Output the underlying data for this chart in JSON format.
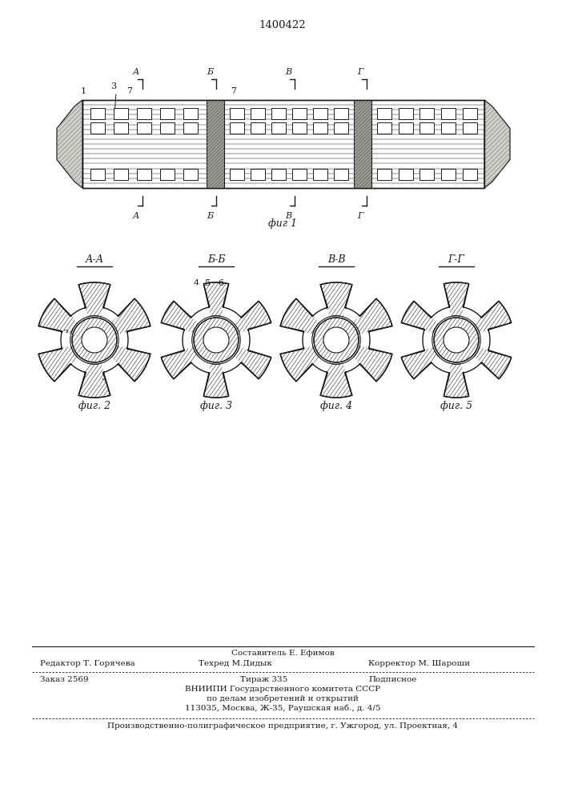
{
  "patent_number": "1400422",
  "fig1_label": "фиг 1",
  "fig2_label": "фиг. 2",
  "fig3_label": "фиг. 3",
  "fig4_label": "фиг. 4",
  "fig5_label": "фиг. 5",
  "cross_section_labels": [
    "А-А",
    "Б-Б",
    "В-В",
    "Г-Г"
  ],
  "section_top": [
    "А",
    "Б",
    "В",
    "Г"
  ],
  "section_bot": [
    "А",
    "Б",
    "В",
    "Г"
  ],
  "footer_line1_mid": "Составитель Е. Ефимов",
  "footer_line1_left": "Редактор Т. Горячева",
  "footer_line1b": "Техред М.Дидык",
  "footer_line1_right": "Корректор М. Шароши",
  "footer_line2_left": "Заказ 2569",
  "footer_line2_mid": "Тираж 335",
  "footer_line2_right": "Подписное",
  "footer_line3": "ВНИИПИ Государственного комитета СССР",
  "footer_line4": "по делам изобретений и открытий",
  "footer_line5": "113035, Москва, Ж-35, Раушская наб., д. 4/5",
  "footer_line6": "Производственно-полиграфическое предприятие, г. Ужгород, ул. Проектная, 4",
  "bg_color": "#ffffff",
  "line_color": "#1a1a1a",
  "fill_hatch": "#c8c8c0",
  "fill_white": "#ffffff",
  "fill_gray": "#b0b0a8",
  "fill_dark": "#808078"
}
